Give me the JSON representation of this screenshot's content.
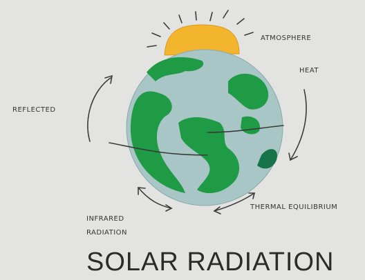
{
  "title": "SOLAR RADIATION",
  "labels": {
    "atmosphere": "ATMOSPHERE",
    "heat": "HEAT",
    "reflected": "REFLECTED",
    "infrared": [
      "INFRARED",
      "RADIATION"
    ],
    "thermal_equilibrium": "THERMAL EQUILIBRIUM"
  }
}
